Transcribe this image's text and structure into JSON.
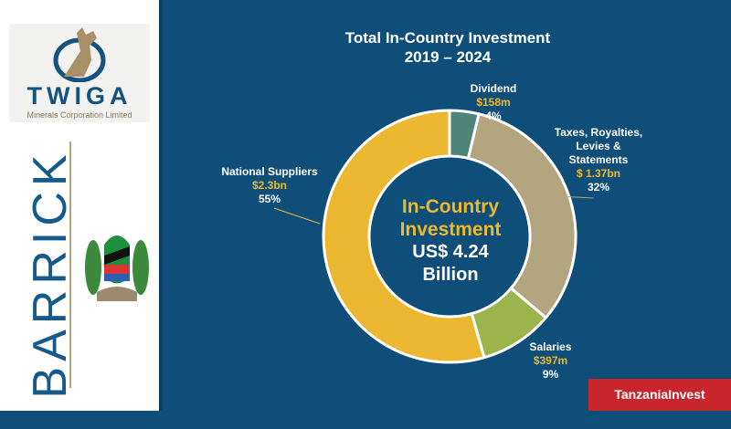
{
  "logos": {
    "twiga_name": "TWIGA",
    "twiga_sub": "Minerals Corporation Limited",
    "barrick": "BARRICK",
    "tanzaniainvest": "TanzaniaInvest"
  },
  "chart_data": {
    "type": "pie",
    "donut": true,
    "title": "Total In-Country Investment",
    "subtitle": "2019 – 2024",
    "center_label": {
      "line1": "In-Country",
      "line2": "Investment",
      "line3": "US$ 4.24",
      "line4": "Billion"
    },
    "unit": "US$ millions",
    "slices": [
      {
        "name": "Dividend",
        "value": 158,
        "value_label": "$158m",
        "percent_label": "4%",
        "color": "#4f8578"
      },
      {
        "name": "Taxes, Royalties, Levies & Statements",
        "name_lines": [
          "Taxes, Royalties,",
          "Levies &",
          "Statements"
        ],
        "value": 1370,
        "value_label": "$ 1.37bn",
        "percent_label": "32%",
        "color": "#b3a57f"
      },
      {
        "name": "Salaries",
        "value": 397,
        "value_label": "$397m",
        "percent_label": "9%",
        "color": "#9bb44c"
      },
      {
        "name": "National Suppliers",
        "value": 2300,
        "value_label": "$2.3bn",
        "percent_label": "55%",
        "color": "#ecb731"
      }
    ]
  }
}
